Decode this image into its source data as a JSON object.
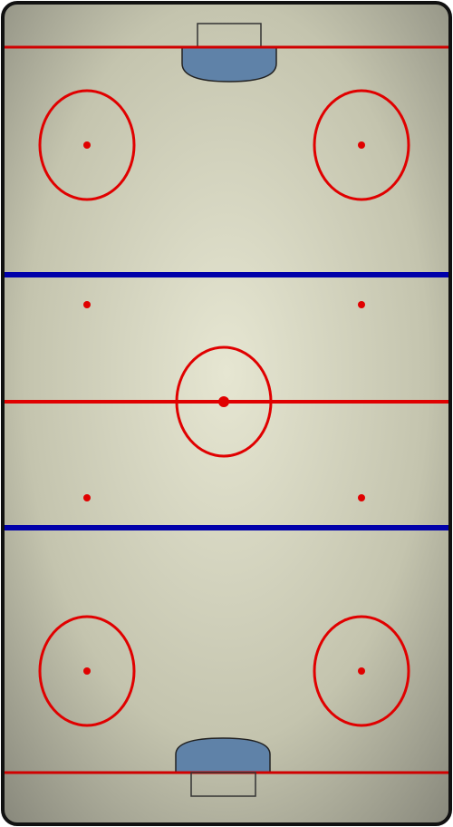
{
  "rink": {
    "name": "hockey-rink",
    "colors": {
      "ice_center": "#e6e6d2",
      "ice_edge": "#8a8a78",
      "board": "#111111",
      "red_line": "#e00000",
      "blue_line": "#0000aa",
      "crease_fill": "#5f82a8",
      "net_stroke": "#333333"
    }
  }
}
